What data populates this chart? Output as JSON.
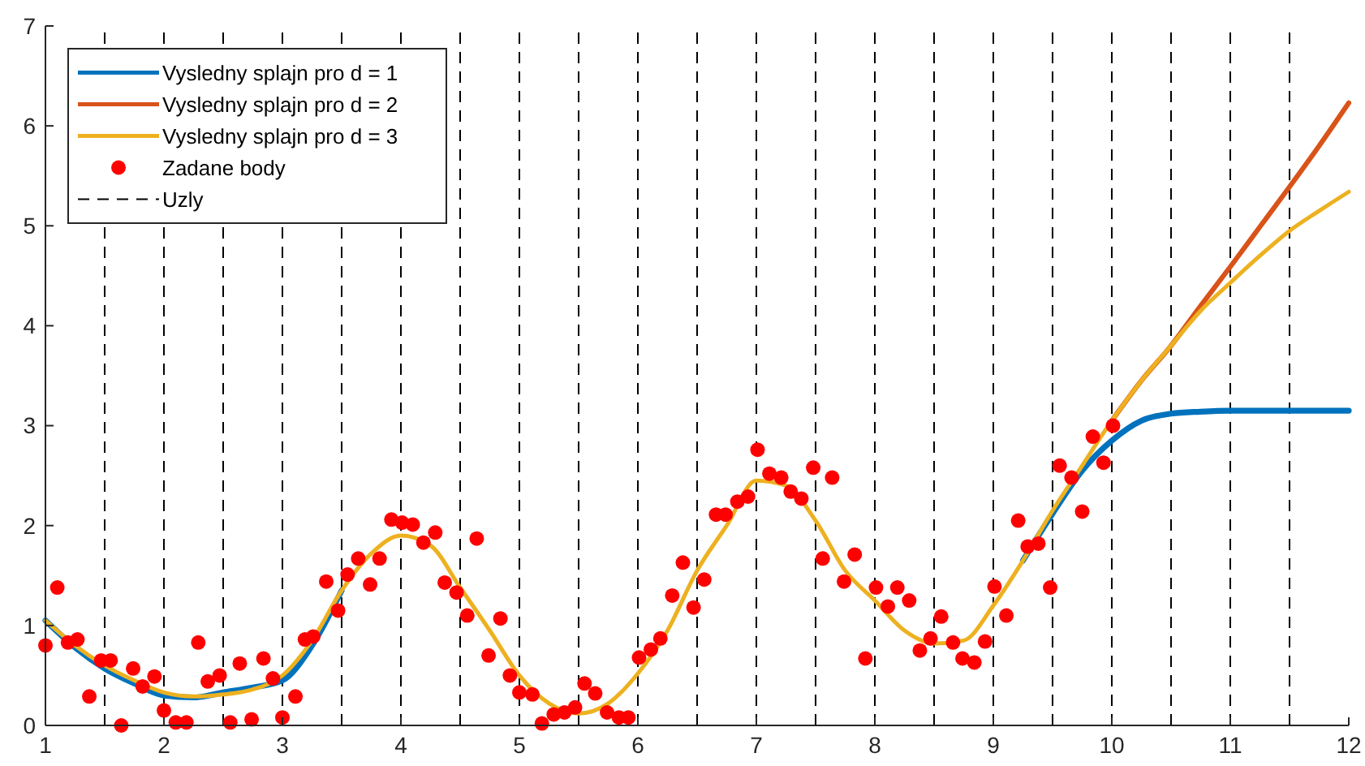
{
  "chart_data": {
    "type": "line",
    "xlim": [
      1,
      12
    ],
    "ylim": [
      0,
      7
    ],
    "xticks": [
      1,
      2,
      3,
      4,
      5,
      6,
      7,
      8,
      9,
      10,
      11,
      12
    ],
    "yticks": [
      0,
      1,
      2,
      3,
      4,
      5,
      6,
      7
    ],
    "grid": false,
    "legend": "top left",
    "line_style": "solid",
    "series": [
      {
        "name": "Vysledny splajn pro d = 1",
        "color": "#0072bd",
        "x": [
          1,
          1.25,
          1.5,
          1.75,
          2,
          2.25,
          2.5,
          2.75,
          3,
          3.25,
          3.5,
          null,
          9.25,
          9.5,
          9.75,
          10,
          10.25,
          10.5,
          10.75,
          11,
          11.5,
          12
        ],
        "values": [
          1.05,
          0.78,
          0.57,
          0.42,
          0.3,
          0.28,
          0.33,
          0.38,
          0.45,
          0.8,
          1.35,
          null,
          1.65,
          2.12,
          2.55,
          2.85,
          3.05,
          3.12,
          3.14,
          3.15,
          3.15,
          3.15
        ]
      },
      {
        "name": "Vysledny splajn pro d = 2",
        "color": "#d95319",
        "x": [
          10,
          10.25,
          10.5,
          10.75,
          11,
          11.25,
          11.5,
          11.75,
          12
        ],
        "values": [
          3.05,
          3.45,
          3.8,
          4.2,
          4.59,
          4.99,
          5.39,
          5.8,
          6.23
        ]
      },
      {
        "name": "Vysledny splajn pro d = 3",
        "color": "#edb120",
        "x": [
          1,
          1.25,
          1.5,
          1.75,
          2,
          2.25,
          2.5,
          2.75,
          3,
          3.25,
          3.5,
          3.75,
          4,
          4.25,
          4.5,
          4.75,
          5,
          5.25,
          5.5,
          5.75,
          6,
          6.25,
          6.5,
          6.75,
          7,
          7.25,
          7.5,
          7.75,
          8,
          8.25,
          8.5,
          8.75,
          9,
          9.25,
          9.5,
          9.75,
          10,
          10.25,
          10.5,
          10.75,
          11,
          11.25,
          11.5,
          11.75,
          12
        ],
        "values": [
          1.05,
          0.8,
          0.6,
          0.45,
          0.33,
          0.29,
          0.31,
          0.36,
          0.5,
          0.85,
          1.35,
          1.72,
          1.9,
          1.8,
          1.38,
          0.95,
          0.5,
          0.22,
          0.12,
          0.22,
          0.52,
          0.95,
          1.55,
          2.0,
          2.45,
          2.4,
          2.05,
          1.55,
          1.25,
          0.95,
          0.82,
          0.85,
          1.2,
          1.65,
          2.15,
          2.6,
          3.05,
          3.45,
          3.8,
          4.15,
          4.43,
          4.7,
          4.95,
          5.15,
          5.34
        ]
      },
      {
        "name": "Zadane body",
        "type": "scatter",
        "color": "#ff0000",
        "marker": "circle",
        "x": [
          1.0,
          1.1,
          1.19,
          1.27,
          1.37,
          1.47,
          1.55,
          1.64,
          1.74,
          1.82,
          1.92,
          2.0,
          2.1,
          2.19,
          2.29,
          2.37,
          2.47,
          2.56,
          2.64,
          2.74,
          2.84,
          2.92,
          3.0,
          3.11,
          3.19,
          3.26,
          3.37,
          3.47,
          3.55,
          3.64,
          3.74,
          3.82,
          3.92,
          4.01,
          4.1,
          4.19,
          4.29,
          4.37,
          4.47,
          4.56,
          4.64,
          4.74,
          4.84,
          4.92,
          5.0,
          5.11,
          5.19,
          5.29,
          5.38,
          5.47,
          5.55,
          5.64,
          5.74,
          5.84,
          5.92,
          6.01,
          6.11,
          6.19,
          6.29,
          6.38,
          6.47,
          6.56,
          6.66,
          6.74,
          6.84,
          6.93,
          7.01,
          7.11,
          7.21,
          7.29,
          7.38,
          7.48,
          7.56,
          7.64,
          7.74,
          7.83,
          7.92,
          8.01,
          8.11,
          8.19,
          8.29,
          8.38,
          8.47,
          8.56,
          8.66,
          8.74,
          8.84,
          8.93,
          9.01,
          9.11,
          9.21,
          9.29,
          9.38,
          9.48,
          9.56,
          9.66,
          9.75,
          9.84,
          9.93,
          10.01
        ],
        "values": [
          0.8,
          1.38,
          0.83,
          0.86,
          0.29,
          0.65,
          0.65,
          0.0,
          0.57,
          0.39,
          0.49,
          0.15,
          0.03,
          0.03,
          0.83,
          0.44,
          0.5,
          0.03,
          0.62,
          0.06,
          0.67,
          0.47,
          0.08,
          0.29,
          0.86,
          0.89,
          1.44,
          1.15,
          1.51,
          1.67,
          1.41,
          1.67,
          2.06,
          2.03,
          2.01,
          1.83,
          1.93,
          1.43,
          1.33,
          1.1,
          1.87,
          0.7,
          1.07,
          0.5,
          0.33,
          0.31,
          0.02,
          0.11,
          0.13,
          0.18,
          0.42,
          0.32,
          0.13,
          0.08,
          0.08,
          0.68,
          0.76,
          0.87,
          1.3,
          1.63,
          1.18,
          1.46,
          2.11,
          2.11,
          2.24,
          2.29,
          2.76,
          2.52,
          2.48,
          2.34,
          2.27,
          2.58,
          1.67,
          2.48,
          1.44,
          1.71,
          0.67,
          1.38,
          1.19,
          1.38,
          1.25,
          0.75,
          0.87,
          1.09,
          0.83,
          0.67,
          0.63,
          0.84,
          1.39,
          1.1,
          2.05,
          1.79,
          1.82,
          1.38,
          2.6,
          2.48,
          2.14,
          2.89,
          2.63,
          3.0
        ]
      }
    ],
    "ref_lines": [
      {
        "axis": "x",
        "value": 1.5,
        "label": "Uzly",
        "color": "#000000",
        "line_style": "dashed"
      },
      {
        "axis": "x",
        "value": 2,
        "color": "#000000",
        "line_style": "dashed"
      },
      {
        "axis": "x",
        "value": 2.5,
        "color": "#000000",
        "line_style": "dashed"
      },
      {
        "axis": "x",
        "value": 3,
        "color": "#000000",
        "line_style": "dashed"
      },
      {
        "axis": "x",
        "value": 3.5,
        "color": "#000000",
        "line_style": "dashed"
      },
      {
        "axis": "x",
        "value": 4,
        "color": "#000000",
        "line_style": "dashed"
      },
      {
        "axis": "x",
        "value": 4.5,
        "color": "#000000",
        "line_style": "dashed"
      },
      {
        "axis": "x",
        "value": 5,
        "color": "#000000",
        "line_style": "dashed"
      },
      {
        "axis": "x",
        "value": 5.5,
        "color": "#000000",
        "line_style": "dashed"
      },
      {
        "axis": "x",
        "value": 6,
        "color": "#000000",
        "line_style": "dashed"
      },
      {
        "axis": "x",
        "value": 6.5,
        "color": "#000000",
        "line_style": "dashed"
      },
      {
        "axis": "x",
        "value": 7,
        "color": "#000000",
        "line_style": "dashed"
      },
      {
        "axis": "x",
        "value": 7.5,
        "color": "#000000",
        "line_style": "dashed"
      },
      {
        "axis": "x",
        "value": 8,
        "color": "#000000",
        "line_style": "dashed"
      },
      {
        "axis": "x",
        "value": 8.5,
        "color": "#000000",
        "line_style": "dashed"
      },
      {
        "axis": "x",
        "value": 9,
        "color": "#000000",
        "line_style": "dashed"
      },
      {
        "axis": "x",
        "value": 9.5,
        "color": "#000000",
        "line_style": "dashed"
      },
      {
        "axis": "x",
        "value": 10,
        "color": "#000000",
        "line_style": "dashed"
      },
      {
        "axis": "x",
        "value": 10.5,
        "color": "#000000",
        "line_style": "dashed"
      },
      {
        "axis": "x",
        "value": 11,
        "color": "#000000",
        "line_style": "dashed"
      },
      {
        "axis": "x",
        "value": 11.5,
        "color": "#000000",
        "line_style": "dashed"
      }
    ]
  }
}
